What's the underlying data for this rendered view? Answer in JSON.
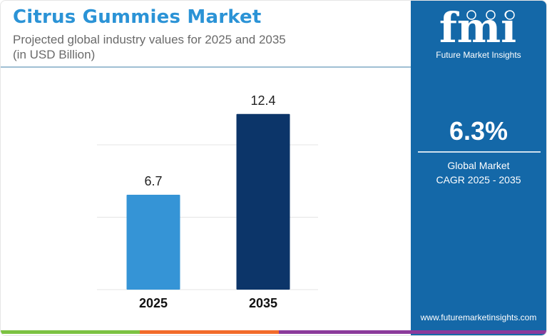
{
  "header": {
    "title": "Citrus Gummies Market",
    "subtitle_line1": "Projected global industry values for 2025 and 2035",
    "subtitle_line2": "(in USD Billion)"
  },
  "sidebar": {
    "logo_text": "fmi",
    "logo_subtext": "Future Market Insights",
    "cagr_value": "6.3%",
    "cagr_label_line1": "Global Market",
    "cagr_label_line2": "CAGR 2025 - 2035",
    "url": "www.futuremarketinsights.com"
  },
  "colors": {
    "title": "#2b93d6",
    "sidebar_bg": "#1468a8",
    "bar_2025": "#3594d6",
    "bar_2035": "#0c3569",
    "footer_green": "#7cc242",
    "footer_orange": "#f26b2a",
    "footer_purple": "#8b3a9b"
  },
  "chart_data": {
    "type": "bar",
    "categories": [
      "2025",
      "2035"
    ],
    "values": [
      6.7,
      12.4
    ],
    "data_labels": [
      "6.7",
      "12.4"
    ],
    "title": "Citrus Gummies Market",
    "xlabel": "",
    "ylabel": "",
    "ylim": [
      0,
      14
    ],
    "grid": true,
    "legend": "none"
  }
}
